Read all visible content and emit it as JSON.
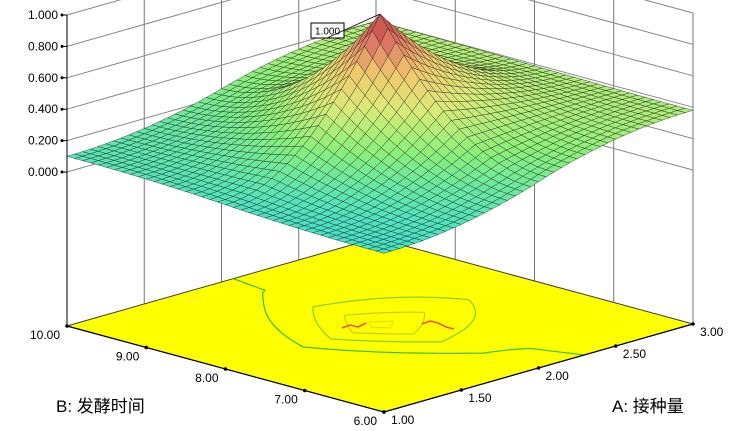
{
  "chart_data": {
    "type": "surface3d",
    "title": "",
    "z_axis": {
      "ticks": [
        "0.000",
        "0.200",
        "0.400",
        "0.600",
        "0.800",
        "1.000"
      ],
      "range": [
        0,
        1
      ]
    },
    "a_axis": {
      "label": "A: 接种量",
      "ticks": [
        "1.00",
        "1.50",
        "2.00",
        "2.50",
        "3.00"
      ],
      "range": [
        1,
        3
      ]
    },
    "b_axis": {
      "label": "B: 发酵时间",
      "ticks": [
        "6.00",
        "7.00",
        "8.00",
        "9.00",
        "10.00"
      ],
      "range": [
        6,
        10
      ]
    },
    "surface": {
      "peak_value": 1.0,
      "peak_at": {
        "A": 2.0,
        "B": 8.0
      },
      "corner_values": {
        "A1_B6": 0.03,
        "A1_B10": 0.1,
        "A3_B6": 0.38,
        "A3_B10": 0.4
      }
    },
    "peak_label": "1.000",
    "floor_color": "#ffff00",
    "grid": true
  }
}
